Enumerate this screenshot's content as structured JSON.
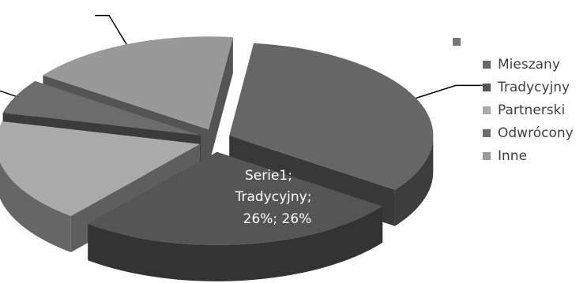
{
  "chart_data": {
    "type": "pie",
    "style": "3d-exploded",
    "legend_position": "right",
    "legend_header": "",
    "slices": [
      {
        "label": "Mieszany",
        "value": 33,
        "color": "#666666"
      },
      {
        "label": "Tradycyjny",
        "value": 26,
        "color": "#555555"
      },
      {
        "label": "Partnerski",
        "value": 18,
        "color": "#aaaaaa"
      },
      {
        "label": "Odwrócony",
        "value": 6,
        "color": "#6c6c6c"
      },
      {
        "label": "Inne",
        "value": 17,
        "color": "#999999"
      }
    ],
    "data_label": {
      "line1": "Serie1;",
      "line2": "Tradycyjny;",
      "line3": "26%; 26%"
    }
  }
}
